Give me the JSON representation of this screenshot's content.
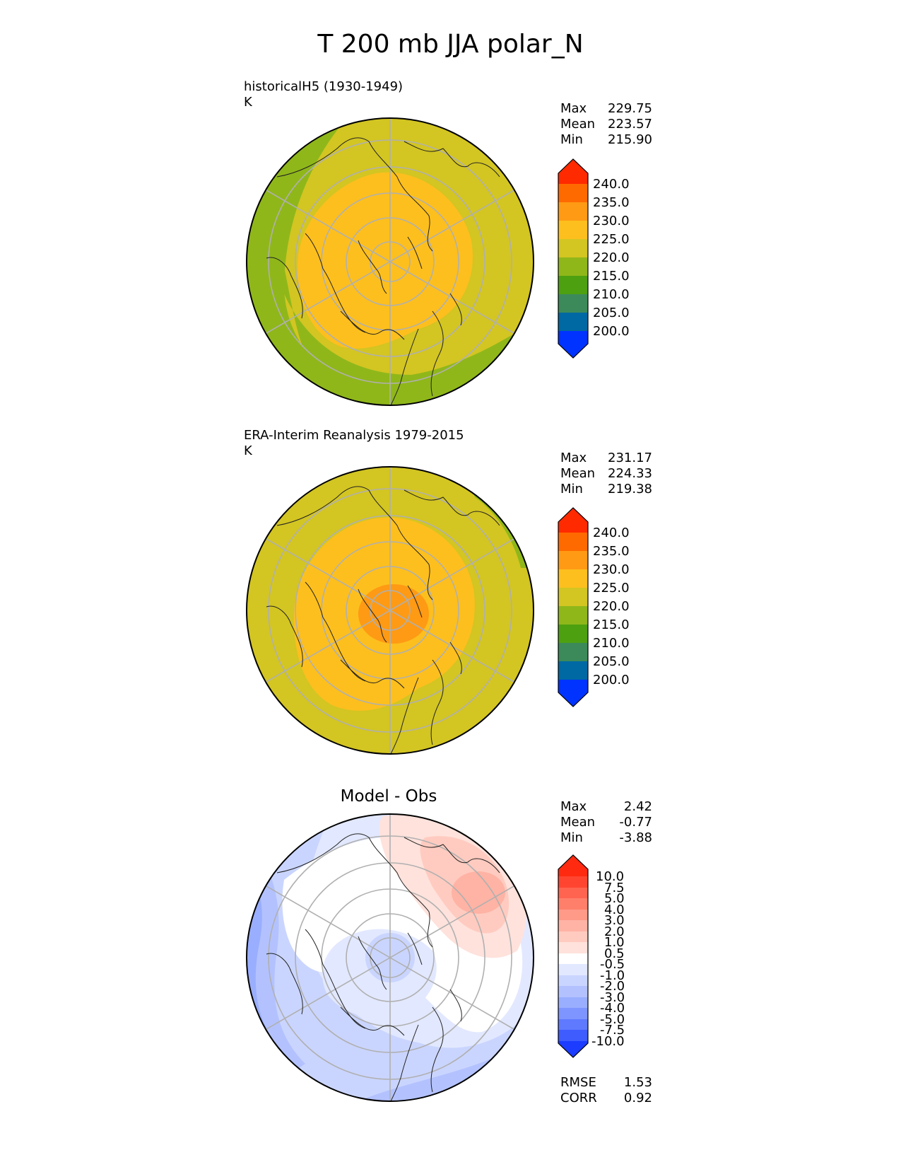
{
  "figure": {
    "title": "T 200 mb JJA polar_N"
  },
  "panels": [
    {
      "title_line1": "historicalH5 (1930-1949)",
      "title_line2": "K",
      "stats": {
        "max_label": "Max",
        "max": "229.75",
        "mean_label": "Mean",
        "mean": "223.57",
        "min_label": "Min",
        "min": "215.90"
      }
    },
    {
      "title_line1": "ERA-Interim Reanalysis 1979-2015",
      "title_line2": "K",
      "stats": {
        "max_label": "Max",
        "max": "231.17",
        "mean_label": "Mean",
        "mean": "224.33",
        "min_label": "Min",
        "min": "219.38"
      }
    },
    {
      "title": "Model - Obs",
      "stats": {
        "max_label": "Max",
        "max": "2.42",
        "mean_label": "Mean",
        "mean": "-0.77",
        "min_label": "Min",
        "min": "-3.88"
      },
      "metrics": {
        "rmse_label": "RMSE",
        "rmse": "1.53",
        "corr_label": "CORR",
        "corr": "0.92"
      }
    }
  ],
  "colorbars": {
    "abs": {
      "ticks": [
        "240.0",
        "235.0",
        "230.0",
        "225.0",
        "220.0",
        "215.0",
        "210.0",
        "205.0",
        "200.0"
      ],
      "colors": [
        "#ff2a00",
        "#ff6a00",
        "#ff9a14",
        "#fdbf1e",
        "#d3c522",
        "#8fb71a",
        "#4da010",
        "#3c8a5a",
        "#0069a3",
        "#0033ff"
      ]
    },
    "diff": {
      "ticks": [
        "10.0",
        "7.5",
        "5.0",
        "4.0",
        "3.0",
        "2.0",
        "1.0",
        "0.5",
        "-0.5",
        "-1.0",
        "-2.0",
        "-3.0",
        "-4.0",
        "-5.0",
        "-7.5",
        "-10.0"
      ],
      "colors": [
        "#ff2a10",
        "#ff4530",
        "#ff6450",
        "#ff7f6a",
        "#ff9a88",
        "#ffb3a4",
        "#ffcbc0",
        "#ffe2dc",
        "#ffffff",
        "#e2e8ff",
        "#cad5ff",
        "#b3c2ff",
        "#9aaeff",
        "#7e95ff",
        "#5f7aff",
        "#3f5cff",
        "#1c3cff"
      ]
    },
    "units": "K"
  },
  "chart_data": [
    {
      "type": "heatmap",
      "title": "historicalH5 (1930-1949)",
      "units": "K",
      "projection": "north polar stereographic",
      "value_range": [
        200,
        240
      ],
      "stats": {
        "max": 229.75,
        "mean": 223.57,
        "min": 215.9
      }
    },
    {
      "type": "heatmap",
      "title": "ERA-Interim Reanalysis 1979-2015",
      "units": "K",
      "projection": "north polar stereographic",
      "value_range": [
        200,
        240
      ],
      "stats": {
        "max": 231.17,
        "mean": 224.33,
        "min": 219.38
      }
    },
    {
      "type": "heatmap",
      "title": "Model - Obs",
      "projection": "north polar stereographic",
      "value_range": [
        -10,
        10
      ],
      "stats": {
        "max": 2.42,
        "mean": -0.77,
        "min": -3.88,
        "rmse": 1.53,
        "corr": 0.92
      }
    }
  ]
}
